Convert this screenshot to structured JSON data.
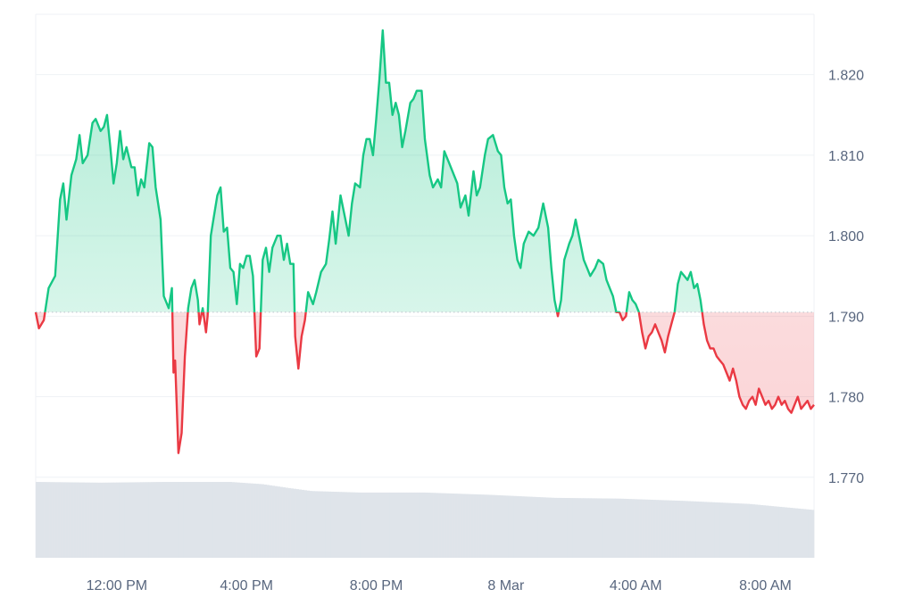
{
  "colors": {
    "up": "#16c784",
    "down": "#ea3943",
    "grid": "#eff2f5",
    "axis_text": "#58667e",
    "baseline": "#c4c9d1",
    "volume": "#dfe4ea"
  },
  "chart_data": {
    "type": "area",
    "baseline": 1.7905,
    "ylim": [
      1.76,
      1.8275
    ],
    "y_ticks": [
      {
        "value": 1.77,
        "label": "1.770"
      },
      {
        "value": 1.78,
        "label": "1.780"
      },
      {
        "value": 1.79,
        "label": "1.790"
      },
      {
        "value": 1.8,
        "label": "1.800"
      },
      {
        "value": 1.81,
        "label": "1.810"
      },
      {
        "value": 1.82,
        "label": "1.820"
      }
    ],
    "xlim": [
      0,
      24
    ],
    "x_ticks": [
      {
        "x": 2.5,
        "label": "12:00 PM"
      },
      {
        "x": 6.5,
        "label": "4:00 PM"
      },
      {
        "x": 10.5,
        "label": "8:00 PM"
      },
      {
        "x": 14.5,
        "label": "8 Mar"
      },
      {
        "x": 18.5,
        "label": "4:00 AM"
      },
      {
        "x": 22.5,
        "label": "8:00 AM"
      }
    ],
    "series": [
      {
        "points": [
          [
            0.0,
            1.7905
          ],
          [
            0.1,
            1.7885
          ],
          [
            0.25,
            1.7895
          ],
          [
            0.4,
            1.7935
          ],
          [
            0.6,
            1.795
          ],
          [
            0.75,
            1.8045
          ],
          [
            0.85,
            1.8065
          ],
          [
            0.95,
            1.802
          ],
          [
            1.1,
            1.8075
          ],
          [
            1.25,
            1.8095
          ],
          [
            1.35,
            1.8125
          ],
          [
            1.45,
            1.809
          ],
          [
            1.6,
            1.81
          ],
          [
            1.75,
            1.814
          ],
          [
            1.85,
            1.8145
          ],
          [
            2.0,
            1.813
          ],
          [
            2.1,
            1.8135
          ],
          [
            2.2,
            1.815
          ],
          [
            2.3,
            1.811
          ],
          [
            2.4,
            1.8065
          ],
          [
            2.5,
            1.809
          ],
          [
            2.6,
            1.813
          ],
          [
            2.7,
            1.8095
          ],
          [
            2.8,
            1.811
          ],
          [
            2.95,
            1.8085
          ],
          [
            3.05,
            1.8085
          ],
          [
            3.15,
            1.805
          ],
          [
            3.25,
            1.807
          ],
          [
            3.35,
            1.806
          ],
          [
            3.5,
            1.8115
          ],
          [
            3.6,
            1.811
          ],
          [
            3.7,
            1.806
          ],
          [
            3.85,
            1.802
          ],
          [
            3.95,
            1.7925
          ],
          [
            4.1,
            1.791
          ],
          [
            4.2,
            1.7935
          ],
          [
            4.25,
            1.783
          ],
          [
            4.3,
            1.7845
          ],
          [
            4.4,
            1.773
          ],
          [
            4.5,
            1.7755
          ],
          [
            4.6,
            1.785
          ],
          [
            4.7,
            1.791
          ],
          [
            4.8,
            1.7935
          ],
          [
            4.9,
            1.7945
          ],
          [
            5.0,
            1.792
          ],
          [
            5.05,
            1.789
          ],
          [
            5.15,
            1.791
          ],
          [
            5.25,
            1.788
          ],
          [
            5.3,
            1.79
          ],
          [
            5.4,
            1.8
          ],
          [
            5.5,
            1.8025
          ],
          [
            5.6,
            1.805
          ],
          [
            5.7,
            1.806
          ],
          [
            5.8,
            1.8005
          ],
          [
            5.9,
            1.801
          ],
          [
            6.0,
            1.796
          ],
          [
            6.1,
            1.7955
          ],
          [
            6.2,
            1.7915
          ],
          [
            6.3,
            1.7965
          ],
          [
            6.4,
            1.796
          ],
          [
            6.5,
            1.7975
          ],
          [
            6.6,
            1.7975
          ],
          [
            6.7,
            1.795
          ],
          [
            6.8,
            1.785
          ],
          [
            6.9,
            1.786
          ],
          [
            7.0,
            1.797
          ],
          [
            7.1,
            1.7985
          ],
          [
            7.2,
            1.7955
          ],
          [
            7.3,
            1.7985
          ],
          [
            7.45,
            1.8
          ],
          [
            7.55,
            1.8
          ],
          [
            7.65,
            1.797
          ],
          [
            7.75,
            1.799
          ],
          [
            7.85,
            1.7965
          ],
          [
            7.95,
            1.7965
          ],
          [
            8.0,
            1.7875
          ],
          [
            8.1,
            1.7835
          ],
          [
            8.2,
            1.7875
          ],
          [
            8.3,
            1.7895
          ],
          [
            8.4,
            1.793
          ],
          [
            8.55,
            1.7915
          ],
          [
            8.65,
            1.793
          ],
          [
            8.8,
            1.7955
          ],
          [
            8.95,
            1.7965
          ],
          [
            9.05,
            1.7995
          ],
          [
            9.15,
            1.803
          ],
          [
            9.25,
            1.799
          ],
          [
            9.4,
            1.805
          ],
          [
            9.55,
            1.802
          ],
          [
            9.65,
            1.8
          ],
          [
            9.75,
            1.804
          ],
          [
            9.85,
            1.8065
          ],
          [
            10.0,
            1.806
          ],
          [
            10.1,
            1.81
          ],
          [
            10.2,
            1.812
          ],
          [
            10.3,
            1.812
          ],
          [
            10.4,
            1.81
          ],
          [
            10.5,
            1.8145
          ],
          [
            10.6,
            1.8195
          ],
          [
            10.7,
            1.8255
          ],
          [
            10.8,
            1.819
          ],
          [
            10.9,
            1.819
          ],
          [
            11.0,
            1.815
          ],
          [
            11.1,
            1.8165
          ],
          [
            11.2,
            1.815
          ],
          [
            11.3,
            1.811
          ],
          [
            11.4,
            1.813
          ],
          [
            11.55,
            1.8165
          ],
          [
            11.65,
            1.817
          ],
          [
            11.75,
            1.818
          ],
          [
            11.9,
            1.818
          ],
          [
            12.0,
            1.812
          ],
          [
            12.15,
            1.8075
          ],
          [
            12.25,
            1.806
          ],
          [
            12.4,
            1.807
          ],
          [
            12.5,
            1.806
          ],
          [
            12.6,
            1.8105
          ],
          [
            12.75,
            1.809
          ],
          [
            12.85,
            1.808
          ],
          [
            13.0,
            1.8065
          ],
          [
            13.1,
            1.8035
          ],
          [
            13.25,
            1.805
          ],
          [
            13.35,
            1.8025
          ],
          [
            13.5,
            1.808
          ],
          [
            13.6,
            1.805
          ],
          [
            13.7,
            1.806
          ],
          [
            13.85,
            1.81
          ],
          [
            13.95,
            1.812
          ],
          [
            14.1,
            1.8125
          ],
          [
            14.25,
            1.8105
          ],
          [
            14.35,
            1.81
          ],
          [
            14.45,
            1.806
          ],
          [
            14.55,
            1.804
          ],
          [
            14.65,
            1.8045
          ],
          [
            14.75,
            1.8
          ],
          [
            14.85,
            1.797
          ],
          [
            14.95,
            1.796
          ],
          [
            15.05,
            1.799
          ],
          [
            15.2,
            1.8005
          ],
          [
            15.35,
            1.8
          ],
          [
            15.5,
            1.801
          ],
          [
            15.65,
            1.804
          ],
          [
            15.8,
            1.801
          ],
          [
            15.9,
            1.796
          ],
          [
            16.0,
            1.792
          ],
          [
            16.1,
            1.79
          ],
          [
            16.2,
            1.792
          ],
          [
            16.3,
            1.797
          ],
          [
            16.45,
            1.799
          ],
          [
            16.55,
            1.8
          ],
          [
            16.65,
            1.802
          ],
          [
            16.75,
            1.8
          ],
          [
            16.9,
            1.797
          ],
          [
            17.0,
            1.796
          ],
          [
            17.1,
            1.795
          ],
          [
            17.25,
            1.796
          ],
          [
            17.35,
            1.797
          ],
          [
            17.5,
            1.7965
          ],
          [
            17.6,
            1.7945
          ],
          [
            17.7,
            1.7935
          ],
          [
            17.8,
            1.7925
          ],
          [
            17.9,
            1.7905
          ],
          [
            18.0,
            1.7905
          ],
          [
            18.1,
            1.7895
          ],
          [
            18.2,
            1.79
          ],
          [
            18.3,
            1.793
          ],
          [
            18.4,
            1.792
          ],
          [
            18.5,
            1.7915
          ],
          [
            18.6,
            1.7905
          ],
          [
            18.7,
            1.788
          ],
          [
            18.8,
            1.786
          ],
          [
            18.9,
            1.7875
          ],
          [
            19.0,
            1.788
          ],
          [
            19.1,
            1.789
          ],
          [
            19.2,
            1.788
          ],
          [
            19.3,
            1.787
          ],
          [
            19.4,
            1.7855
          ],
          [
            19.5,
            1.7875
          ],
          [
            19.6,
            1.789
          ],
          [
            19.7,
            1.7905
          ],
          [
            19.8,
            1.794
          ],
          [
            19.9,
            1.7955
          ],
          [
            20.0,
            1.795
          ],
          [
            20.1,
            1.7945
          ],
          [
            20.2,
            1.7955
          ],
          [
            20.3,
            1.7935
          ],
          [
            20.4,
            1.794
          ],
          [
            20.5,
            1.792
          ],
          [
            20.6,
            1.789
          ],
          [
            20.7,
            1.787
          ],
          [
            20.8,
            1.786
          ],
          [
            20.9,
            1.786
          ],
          [
            21.0,
            1.785
          ],
          [
            21.1,
            1.7845
          ],
          [
            21.2,
            1.784
          ],
          [
            21.3,
            1.783
          ],
          [
            21.4,
            1.782
          ],
          [
            21.5,
            1.7835
          ],
          [
            21.6,
            1.782
          ],
          [
            21.7,
            1.78
          ],
          [
            21.8,
            1.779
          ],
          [
            21.9,
            1.7785
          ],
          [
            22.0,
            1.7795
          ],
          [
            22.1,
            1.78
          ],
          [
            22.2,
            1.779
          ],
          [
            22.3,
            1.781
          ],
          [
            22.4,
            1.78
          ],
          [
            22.5,
            1.779
          ],
          [
            22.6,
            1.7795
          ],
          [
            22.7,
            1.7785
          ],
          [
            22.8,
            1.779
          ],
          [
            22.9,
            1.78
          ],
          [
            23.0,
            1.779
          ],
          [
            23.1,
            1.7795
          ],
          [
            23.2,
            1.7785
          ],
          [
            23.3,
            1.778
          ],
          [
            23.4,
            1.779
          ],
          [
            23.5,
            1.78
          ],
          [
            23.6,
            1.7785
          ],
          [
            23.7,
            1.779
          ],
          [
            23.8,
            1.7795
          ],
          [
            23.9,
            1.7785
          ],
          [
            24.0,
            1.779
          ]
        ]
      }
    ],
    "volume": [
      [
        0.0,
        1.0
      ],
      [
        2.0,
        0.99
      ],
      [
        4.0,
        1.0
      ],
      [
        6.0,
        1.0
      ],
      [
        7.0,
        0.97
      ],
      [
        7.8,
        0.92
      ],
      [
        8.5,
        0.88
      ],
      [
        10.0,
        0.86
      ],
      [
        12.0,
        0.86
      ],
      [
        14.0,
        0.83
      ],
      [
        16.0,
        0.79
      ],
      [
        18.0,
        0.78
      ],
      [
        20.0,
        0.75
      ],
      [
        22.0,
        0.71
      ],
      [
        24.0,
        0.63
      ]
    ],
    "grid": true
  }
}
